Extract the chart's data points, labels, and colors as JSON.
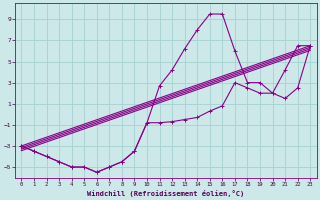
{
  "xlabel": "Windchill (Refroidissement éolien,°C)",
  "background_color": "#cce8e8",
  "grid_color": "#aad4d4",
  "line_color": "#880088",
  "xlim": [
    -0.5,
    23.5
  ],
  "ylim": [
    -6,
    10.5
  ],
  "xticks": [
    0,
    1,
    2,
    3,
    4,
    5,
    6,
    7,
    8,
    9,
    10,
    11,
    12,
    13,
    14,
    15,
    16,
    17,
    18,
    19,
    20,
    21,
    22,
    23
  ],
  "yticks": [
    -5,
    -3,
    -1,
    1,
    3,
    5,
    7,
    9
  ],
  "line1_x": [
    0,
    1,
    2,
    3,
    4,
    5,
    6,
    7,
    8,
    9,
    10,
    11,
    12,
    13,
    14,
    15,
    16,
    17,
    18,
    19,
    20,
    21,
    22,
    23
  ],
  "line1_y": [
    -3.0,
    -3.5,
    -4.0,
    -4.5,
    -5.0,
    -5.0,
    -5.5,
    -5.0,
    -4.5,
    -3.5,
    -0.8,
    2.7,
    4.2,
    6.2,
    8.0,
    9.5,
    9.5,
    6.0,
    3.0,
    3.0,
    2.0,
    4.2,
    6.5,
    6.5
  ],
  "line2_x": [
    0,
    1,
    2,
    3,
    4,
    5,
    6,
    7,
    8,
    9,
    10,
    11,
    12,
    13,
    14,
    15,
    16,
    17,
    18,
    19,
    20,
    21,
    22,
    23
  ],
  "line2_y": [
    -3.0,
    -3.5,
    -4.0,
    -4.5,
    -5.0,
    -5.0,
    -5.5,
    -5.0,
    -4.5,
    -3.5,
    -0.8,
    -0.8,
    -0.7,
    -0.5,
    -0.3,
    0.3,
    0.8,
    3.0,
    2.5,
    2.0,
    2.0,
    1.5,
    2.5,
    6.5
  ],
  "line3_x": [
    0,
    23
  ],
  "line3_y": [
    -3.0,
    6.5
  ],
  "line4_x": [
    0,
    23
  ],
  "line4_y": [
    -3.0,
    6.5
  ],
  "line5_x": [
    0,
    23
  ],
  "line5_y": [
    -3.0,
    6.5
  ],
  "line6_x": [
    0,
    23
  ],
  "line6_y": [
    -3.0,
    6.5
  ]
}
